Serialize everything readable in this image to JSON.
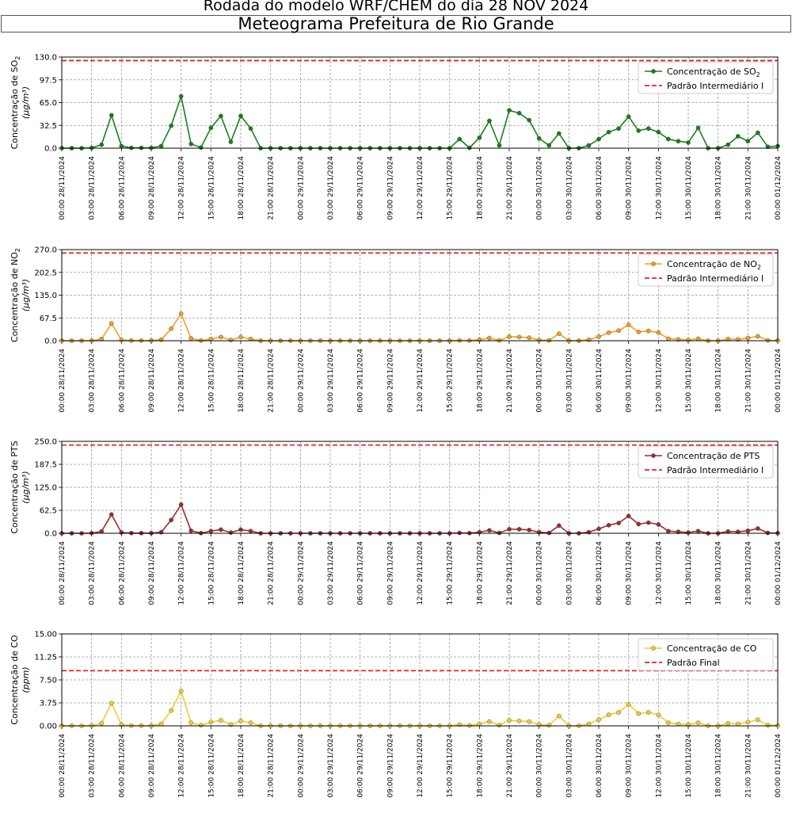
{
  "header": {
    "suptitle": "Rodada do modelo WRF/CHEM do dia 28 NOV 2024",
    "title": "Meteograma Prefeitura de Rio Grande"
  },
  "x_tick_labels": [
    "00:00 28/11/2024",
    "03:00 28/11/2024",
    "06:00 28/11/2024",
    "09:00 28/11/2024",
    "12:00 28/11/2024",
    "15:00 28/11/2024",
    "18:00 28/11/2024",
    "21:00 28/11/2024",
    "00:00 29/11/2024",
    "03:00 29/11/2024",
    "06:00 29/11/2024",
    "09:00 29/11/2024",
    "12:00 29/11/2024",
    "15:00 29/11/2024",
    "18:00 29/11/2024",
    "21:00 29/11/2024",
    "00:00 30/11/2024",
    "03:00 30/11/2024",
    "06:00 30/11/2024",
    "09:00 30/11/2024",
    "12:00 30/11/2024",
    "15:00 30/11/2024",
    "18:00 30/11/2024",
    "21:00 30/11/2024",
    "00:00 01/12/2024"
  ],
  "chart_data": [
    {
      "type": "line",
      "pollutant": "SO2",
      "ylabel_main": "Concentração de SO",
      "ylabel_sub": "2",
      "yunit": "(μg/m³)",
      "ylim": [
        0,
        130
      ],
      "yticks": [
        "0.0",
        "32.5",
        "65.0",
        "97.5",
        "130.0"
      ],
      "color": "#1a7f1a",
      "standard": {
        "value": 125,
        "label": "Padrão Intermediário I"
      },
      "legend": {
        "series_main": "Concentração de SO",
        "series_sub": "2",
        "placement": "top-right"
      },
      "x_hours": [
        0,
        1,
        2,
        3,
        4,
        5,
        6,
        7,
        8,
        9,
        10,
        11,
        12,
        13,
        14,
        15,
        16,
        17,
        18,
        19,
        20,
        21,
        22,
        23,
        24,
        25,
        26,
        27,
        28,
        29,
        30,
        31,
        32,
        33,
        34,
        35,
        36,
        37,
        38,
        39,
        40,
        41,
        42,
        43,
        44,
        45,
        46,
        47,
        48,
        49,
        50,
        51,
        52,
        53,
        54,
        55,
        56,
        57,
        58,
        59,
        60,
        61,
        62,
        63,
        64,
        65,
        66,
        67,
        68,
        69,
        70,
        71,
        72
      ],
      "values": [
        0,
        0,
        0,
        0.5,
        5,
        47,
        3,
        0.5,
        0.5,
        0.5,
        3,
        32,
        74,
        6,
        1,
        29,
        46,
        9,
        46,
        28,
        0,
        0,
        0,
        0,
        0,
        0,
        0,
        0,
        0,
        0,
        0,
        0,
        0,
        0,
        0,
        0,
        0,
        0,
        0,
        0,
        13,
        0.5,
        15,
        39,
        4,
        54,
        50,
        40,
        14,
        4,
        21,
        0,
        0,
        4,
        13,
        23,
        28,
        45,
        25,
        28,
        23,
        13,
        10,
        8,
        29,
        0,
        0,
        5,
        17,
        10,
        22,
        2,
        3
      ]
    },
    {
      "type": "line",
      "pollutant": "NO2",
      "ylabel_main": "Concentração de NO",
      "ylabel_sub": "2",
      "yunit": "(μg/m³)",
      "ylim": [
        0,
        270
      ],
      "yticks": [
        "0.0",
        "67.5",
        "135.0",
        "202.5",
        "270.0"
      ],
      "color": "#f2a020",
      "standard": {
        "value": 260,
        "label": "Padrão Intermediário I"
      },
      "legend": {
        "series_main": "Concentração de NO",
        "series_sub": "2",
        "placement": "top-right"
      },
      "x_hours": [
        0,
        1,
        2,
        3,
        4,
        5,
        6,
        7,
        8,
        9,
        10,
        11,
        12,
        13,
        14,
        15,
        16,
        17,
        18,
        19,
        20,
        21,
        22,
        23,
        24,
        25,
        26,
        27,
        28,
        29,
        30,
        31,
        32,
        33,
        34,
        35,
        36,
        37,
        38,
        39,
        40,
        41,
        42,
        43,
        44,
        45,
        46,
        47,
        48,
        49,
        50,
        51,
        52,
        53,
        54,
        55,
        56,
        57,
        58,
        59,
        60,
        61,
        62,
        63,
        64,
        65,
        66,
        67,
        68,
        69,
        70,
        71,
        72
      ],
      "values": [
        0,
        0,
        0,
        0.5,
        5,
        51,
        2,
        0.5,
        0.5,
        0.5,
        3,
        36,
        80,
        7,
        0.5,
        5,
        11,
        2,
        11,
        5,
        0,
        0,
        0,
        0,
        0,
        0,
        0,
        0,
        0,
        0,
        0,
        0,
        0,
        0,
        0,
        0,
        0,
        0,
        0,
        0,
        1,
        0.5,
        3,
        8,
        1,
        12,
        11,
        9,
        2,
        1,
        21,
        0,
        0,
        3,
        12,
        24,
        30,
        47,
        26,
        29,
        24,
        6,
        4,
        2,
        6,
        0,
        0,
        5,
        4,
        8,
        13,
        1,
        0.5
      ]
    },
    {
      "type": "line",
      "pollutant": "PTS",
      "ylabel_main": "Concentração de PTS",
      "ylabel_sub": "",
      "yunit": "(μg/m³)",
      "ylim": [
        0,
        250
      ],
      "yticks": [
        "0.0",
        "62.5",
        "125.0",
        "187.5",
        "250.0"
      ],
      "color": "#9b2d2d",
      "standard": {
        "value": 240,
        "label": "Padrão Intermediário I"
      },
      "legend": {
        "series_main": "Concentração de PTS",
        "series_sub": "",
        "placement": "top-right"
      },
      "x_hours": [
        0,
        1,
        2,
        3,
        4,
        5,
        6,
        7,
        8,
        9,
        10,
        11,
        12,
        13,
        14,
        15,
        16,
        17,
        18,
        19,
        20,
        21,
        22,
        23,
        24,
        25,
        26,
        27,
        28,
        29,
        30,
        31,
        32,
        33,
        34,
        35,
        36,
        37,
        38,
        39,
        40,
        41,
        42,
        43,
        44,
        45,
        46,
        47,
        48,
        49,
        50,
        51,
        52,
        53,
        54,
        55,
        56,
        57,
        58,
        59,
        60,
        61,
        62,
        63,
        64,
        65,
        66,
        67,
        68,
        69,
        70,
        71,
        72
      ],
      "values": [
        0,
        0,
        0,
        0.5,
        5,
        51,
        2,
        0.5,
        0.5,
        0.5,
        3,
        36,
        78,
        7,
        0.5,
        6,
        10,
        2,
        10,
        6,
        0,
        0,
        0,
        0,
        0,
        0,
        0,
        0,
        0,
        0,
        0,
        0,
        0,
        0,
        0,
        0,
        0,
        0,
        0,
        0,
        1,
        0.5,
        3,
        8,
        1,
        11,
        11,
        9,
        3,
        1,
        21,
        0,
        0,
        3,
        12,
        22,
        28,
        47,
        25,
        29,
        24,
        6,
        4,
        2,
        6,
        0,
        0,
        5,
        4,
        7,
        13,
        1,
        0.5
      ]
    },
    {
      "type": "line",
      "pollutant": "CO",
      "ylabel_main": "Concentração de CO",
      "ylabel_sub": "",
      "yunit": "(ppm)",
      "ylim": [
        0,
        15
      ],
      "yticks": [
        "0.00",
        "3.75",
        "7.50",
        "11.25",
        "15.00"
      ],
      "color": "#f2cc2c",
      "standard": {
        "value": 9,
        "label": "Padrão Final"
      },
      "legend": {
        "series_main": "Concentração de CO",
        "series_sub": "",
        "placement": "top-right"
      },
      "x_hours": [
        0,
        1,
        2,
        3,
        4,
        5,
        6,
        7,
        8,
        9,
        10,
        11,
        12,
        13,
        14,
        15,
        16,
        17,
        18,
        19,
        20,
        21,
        22,
        23,
        24,
        25,
        26,
        27,
        28,
        29,
        30,
        31,
        32,
        33,
        34,
        35,
        36,
        37,
        38,
        39,
        40,
        41,
        42,
        43,
        44,
        45,
        46,
        47,
        48,
        49,
        50,
        51,
        52,
        53,
        54,
        55,
        56,
        57,
        58,
        59,
        60,
        61,
        62,
        63,
        64,
        65,
        66,
        67,
        68,
        69,
        70,
        71,
        72
      ],
      "values": [
        0,
        0,
        0,
        0.03,
        0.4,
        3.7,
        0.2,
        0.03,
        0.03,
        0.03,
        0.3,
        2.5,
        5.7,
        0.5,
        0.1,
        0.6,
        0.9,
        0.2,
        0.8,
        0.5,
        0,
        0,
        0,
        0,
        0,
        0,
        0,
        0,
        0,
        0,
        0,
        0,
        0,
        0,
        0,
        0,
        0,
        0,
        0,
        0,
        0.2,
        0.05,
        0.3,
        0.7,
        0.1,
        0.9,
        0.8,
        0.7,
        0.2,
        0.1,
        1.6,
        0,
        0,
        0.3,
        1.0,
        1.8,
        2.2,
        3.5,
        2.0,
        2.2,
        1.8,
        0.5,
        0.3,
        0.2,
        0.5,
        0,
        0,
        0.4,
        0.3,
        0.6,
        1.0,
        0.1,
        0.05
      ]
    }
  ]
}
